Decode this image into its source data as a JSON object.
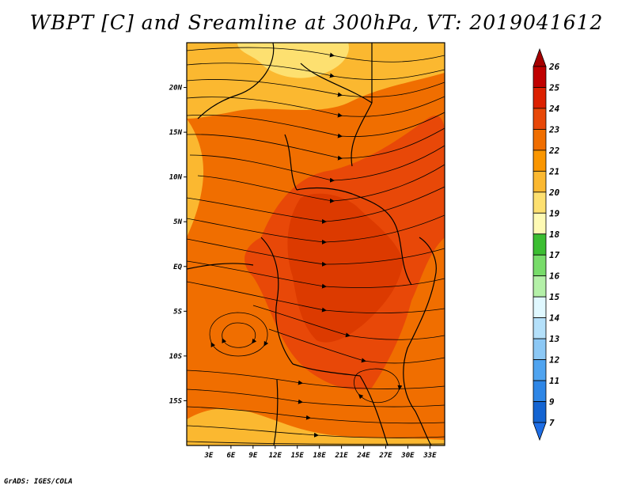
{
  "title": "WBPT [C] and Sreamline at 300hPa, VT: 2019041612",
  "credit": "GrADS: IGES/COLA",
  "map": {
    "lon_range": [
      0,
      35
    ],
    "lat_range": [
      -20,
      25
    ],
    "lon_ticks": [
      {
        "value": 3,
        "label": "3E"
      },
      {
        "value": 6,
        "label": "6E"
      },
      {
        "value": 9,
        "label": "9E"
      },
      {
        "value": 12,
        "label": "12E"
      },
      {
        "value": 15,
        "label": "15E"
      },
      {
        "value": 18,
        "label": "18E"
      },
      {
        "value": 21,
        "label": "21E"
      },
      {
        "value": 24,
        "label": "24E"
      },
      {
        "value": 27,
        "label": "27E"
      },
      {
        "value": 30,
        "label": "30E"
      },
      {
        "value": 33,
        "label": "33E"
      }
    ],
    "lat_ticks": [
      {
        "value": 20,
        "label": "20N"
      },
      {
        "value": 15,
        "label": "15N"
      },
      {
        "value": 10,
        "label": "10N"
      },
      {
        "value": 5,
        "label": "5N"
      },
      {
        "value": 0,
        "label": "EQ"
      },
      {
        "value": -5,
        "label": "5S"
      },
      {
        "value": -10,
        "label": "10S"
      },
      {
        "value": -15,
        "label": "15S"
      }
    ]
  },
  "colorbar": {
    "levels": [
      {
        "label": "26",
        "color": "#a50000"
      },
      {
        "label": "25",
        "color": "#c00000"
      },
      {
        "label": "24",
        "color": "#dc2000"
      },
      {
        "label": "23",
        "color": "#e84808"
      },
      {
        "label": "22",
        "color": "#f06e00"
      },
      {
        "label": "21",
        "color": "#fa9600"
      },
      {
        "label": "20",
        "color": "#fbb830"
      },
      {
        "label": "19",
        "color": "#fde070"
      },
      {
        "label": "18",
        "color": "#fefab4"
      },
      {
        "label": "17",
        "color": "#3cbe32"
      },
      {
        "label": "16",
        "color": "#78dc6a"
      },
      {
        "label": "15",
        "color": "#b4f0a8"
      },
      {
        "label": "14",
        "color": "#e0f8ff"
      },
      {
        "label": "13",
        "color": "#b4e0fa"
      },
      {
        "label": "12",
        "color": "#8cc8f5"
      },
      {
        "label": "11",
        "color": "#50a4f0"
      },
      {
        "label": "9",
        "color": "#2e86e6"
      },
      {
        "label": "7",
        "color": "#1464d2"
      }
    ],
    "lowest_color": "#1e6ee6"
  }
}
